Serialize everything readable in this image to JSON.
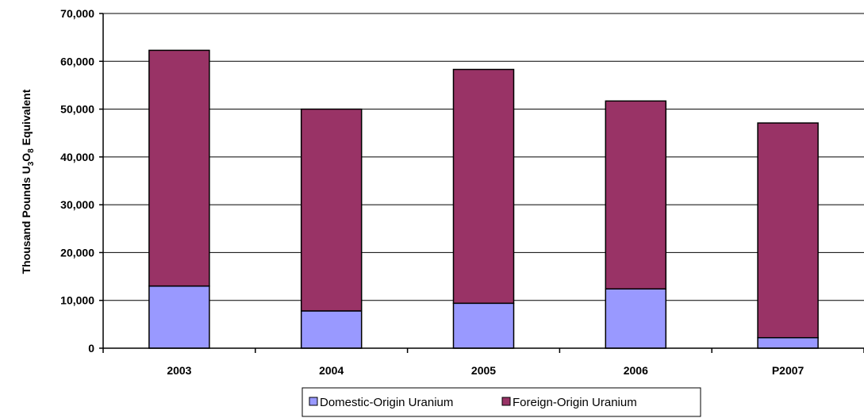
{
  "chart_data": {
    "type": "bar",
    "stacked": true,
    "categories": [
      "2003",
      "2004",
      "2005",
      "2006",
      "P2007"
    ],
    "series": [
      {
        "name": "Domestic-Origin Uranium",
        "color": "#9999ff",
        "values": [
          13000,
          7800,
          9400,
          12400,
          2200
        ]
      },
      {
        "name": "Foreign-Origin Uranium",
        "color": "#993366",
        "values": [
          49300,
          42200,
          48900,
          39300,
          44900
        ]
      }
    ],
    "ylabel": "Thousand Pounds U3O8 Equivalent",
    "ylabel_parts": {
      "pre": "Thousand Pounds U",
      "sub1": "3",
      "mid": "O",
      "sub2": "8",
      "post": " Equivalent"
    },
    "ylim": [
      0,
      70000
    ],
    "yticks": [
      0,
      10000,
      20000,
      30000,
      40000,
      50000,
      60000,
      70000
    ],
    "ytick_labels": [
      "0",
      "10,000",
      "20,000",
      "30,000",
      "40,000",
      "50,000",
      "60,000",
      "70,000"
    ],
    "grid": true,
    "legend": "bottom"
  }
}
